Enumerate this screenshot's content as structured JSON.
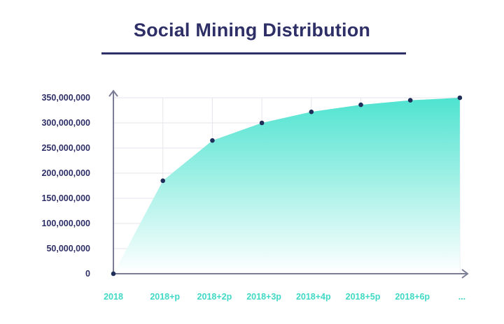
{
  "title": "Social Mining Distribution",
  "colors": {
    "title": "#2e2f66",
    "axis": "#7b7c95",
    "grid": "#e6e6ec",
    "area_top": "#4fe3d0",
    "area_bottom": "#ffffff",
    "point": "#1f2f5a",
    "x_tick_text": "#3fd9c5",
    "y_tick_text": "#2e2f66"
  },
  "chart_data": {
    "type": "area",
    "categories": [
      "2018",
      "2018+p",
      "2018+2p",
      "2018+3p",
      "2018+4p",
      "2018+5p",
      "2018+6p",
      "..."
    ],
    "values": [
      0,
      185000000,
      265000000,
      300000000,
      322000000,
      336000000,
      345000000,
      350000000
    ],
    "y_ticks": [
      "350,000,000",
      "300,000,000",
      "250,000,000",
      "200,000,000",
      "150,000,000",
      "100,000,000",
      "50,000,000",
      "0"
    ],
    "ylim": [
      0,
      350000000
    ],
    "grid": true,
    "markers": true
  }
}
